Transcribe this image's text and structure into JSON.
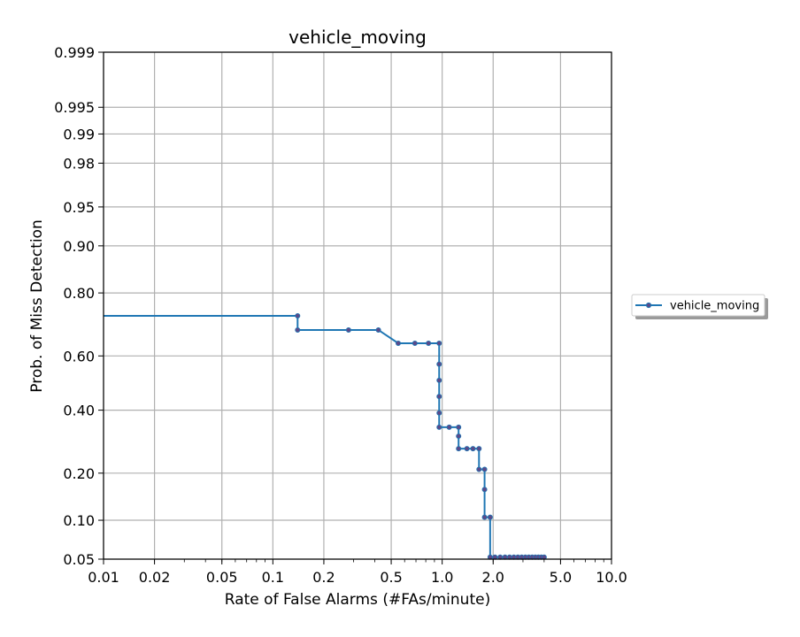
{
  "chart_data": {
    "type": "line",
    "title": "vehicle_moving",
    "xlabel": "Rate of False Alarms (#FAs/minute)",
    "ylabel": "Prob. of Miss Detection",
    "x_scale": "log",
    "y_scale": "normal-deviate",
    "xlim": [
      0.01,
      10.0
    ],
    "ylim": [
      0.05,
      0.999
    ],
    "x_ticks": [
      0.01,
      0.02,
      0.05,
      0.1,
      0.2,
      0.5,
      1.0,
      2.0,
      5.0,
      10.0
    ],
    "x_tick_labels": [
      "0.01",
      "0.02",
      "0.05",
      "0.1",
      "0.2",
      "0.5",
      "1.0",
      "2.0",
      "5.0",
      "10.0"
    ],
    "y_ticks": [
      0.05,
      0.1,
      0.2,
      0.4,
      0.6,
      0.8,
      0.9,
      0.95,
      0.98,
      0.99,
      0.995,
      0.999
    ],
    "y_tick_labels": [
      "0.05",
      "0.10",
      "0.20",
      "0.40",
      "0.60",
      "0.80",
      "0.90",
      "0.95",
      "0.98",
      "0.99",
      "0.995",
      "0.999"
    ],
    "grid": true,
    "legend_position": "right, outside plot",
    "series": [
      {
        "name": "vehicle_moving",
        "color": "#1f77b4",
        "marker_color": "#5a4a8a",
        "line_x": [
          0.01,
          0.14,
          0.14,
          0.42,
          0.55,
          0.96,
          0.96,
          1.25,
          1.25,
          1.65,
          1.65,
          1.78,
          1.78,
          1.92,
          1.92,
          4.1
        ],
        "line_y": [
          0.735,
          0.735,
          0.69,
          0.69,
          0.645,
          0.645,
          0.34,
          0.34,
          0.27,
          0.27,
          0.21,
          0.21,
          0.105,
          0.105,
          0.052,
          0.052
        ],
        "marker_x": [
          0.14,
          0.14,
          0.28,
          0.42,
          0.55,
          0.69,
          0.83,
          0.96,
          0.96,
          0.96,
          0.96,
          0.96,
          0.96,
          1.1,
          1.25,
          1.25,
          1.25,
          1.4,
          1.52,
          1.65,
          1.65,
          1.78,
          1.78,
          1.78,
          1.92,
          1.92,
          2.05,
          2.2,
          2.35,
          2.5,
          2.65,
          2.8,
          2.95,
          3.1,
          3.25,
          3.4,
          3.55,
          3.7,
          3.85,
          4.0
        ],
        "marker_y": [
          0.735,
          0.69,
          0.69,
          0.69,
          0.645,
          0.645,
          0.645,
          0.645,
          0.57,
          0.51,
          0.45,
          0.39,
          0.34,
          0.34,
          0.34,
          0.31,
          0.27,
          0.27,
          0.27,
          0.27,
          0.21,
          0.21,
          0.16,
          0.105,
          0.105,
          0.052,
          0.052,
          0.052,
          0.052,
          0.052,
          0.052,
          0.052,
          0.052,
          0.052,
          0.052,
          0.052,
          0.052,
          0.052,
          0.052,
          0.052
        ]
      }
    ]
  }
}
